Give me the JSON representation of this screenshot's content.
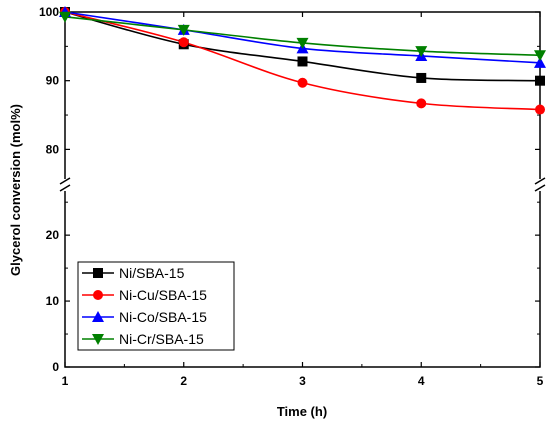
{
  "chart_data": {
    "type": "line",
    "xlabel": "Time (h)",
    "ylabel": "Glycerol conversion (mol%)",
    "x": [
      1,
      2,
      3,
      4,
      5
    ],
    "xlim": [
      1,
      5
    ],
    "x_ticks": [
      "1",
      "2",
      "3",
      "4",
      "5"
    ],
    "y_axis_break": true,
    "ylim_lower": [
      0,
      27
    ],
    "ylim_upper": [
      77,
      100
    ],
    "y_ticks": [
      "0",
      "10",
      "20",
      "80",
      "90",
      "100"
    ],
    "grid": false,
    "legend_position": "bottom-left",
    "series": [
      {
        "name": "Ni/SBA-15",
        "color": "#000000",
        "marker": "square",
        "values": [
          100.0,
          95.3,
          92.8,
          90.4,
          90.0
        ]
      },
      {
        "name": "Ni-Cu/SBA-15",
        "color": "#ff0000",
        "marker": "circle",
        "values": [
          100.0,
          95.6,
          89.7,
          86.7,
          85.8
        ]
      },
      {
        "name": "Ni-Co/SBA-15",
        "color": "#0000ff",
        "marker": "triangle-up",
        "values": [
          100.0,
          97.4,
          94.7,
          93.6,
          92.6
        ]
      },
      {
        "name": "Ni-Cr/SBA-15",
        "color": "#008000",
        "marker": "triangle-down",
        "values": [
          99.3,
          97.4,
          95.5,
          94.3,
          93.7
        ]
      }
    ]
  }
}
